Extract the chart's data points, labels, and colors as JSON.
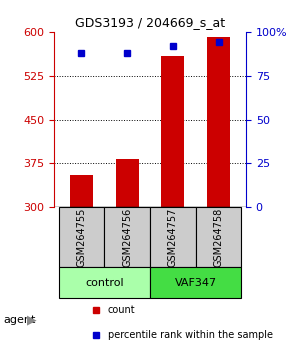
{
  "title": "GDS3193 / 204669_s_at",
  "samples": [
    "GSM264755",
    "GSM264756",
    "GSM264757",
    "GSM264758"
  ],
  "counts": [
    355,
    383,
    558,
    592
  ],
  "percentile_ranks": [
    88,
    88,
    92,
    94
  ],
  "y_min": 300,
  "y_max": 600,
  "y_ticks": [
    300,
    375,
    450,
    525,
    600
  ],
  "y_ticks_right": [
    0,
    25,
    50,
    75,
    100
  ],
  "bar_color": "#cc0000",
  "dot_color": "#0000cc",
  "groups": [
    {
      "label": "control",
      "samples": [
        0,
        1
      ],
      "color": "#aaffaa"
    },
    {
      "label": "VAF347",
      "samples": [
        2,
        3
      ],
      "color": "#44dd44"
    }
  ],
  "group_row_color": "#aaffaa",
  "group_row_color2": "#44dd44",
  "sample_row_color": "#cccccc",
  "left_color": "#cc0000",
  "right_color": "#0000cc",
  "legend_count_color": "#cc0000",
  "legend_pct_color": "#0000cc",
  "agent_label": "agent",
  "arrow_color": "#888888"
}
